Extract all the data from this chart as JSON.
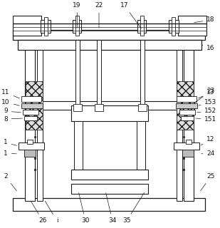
{
  "bg_color": "#ffffff",
  "line_color": "#1a1a1a",
  "label_color": "#111111",
  "figsize": [
    3.09,
    3.2
  ],
  "dpi": 100
}
